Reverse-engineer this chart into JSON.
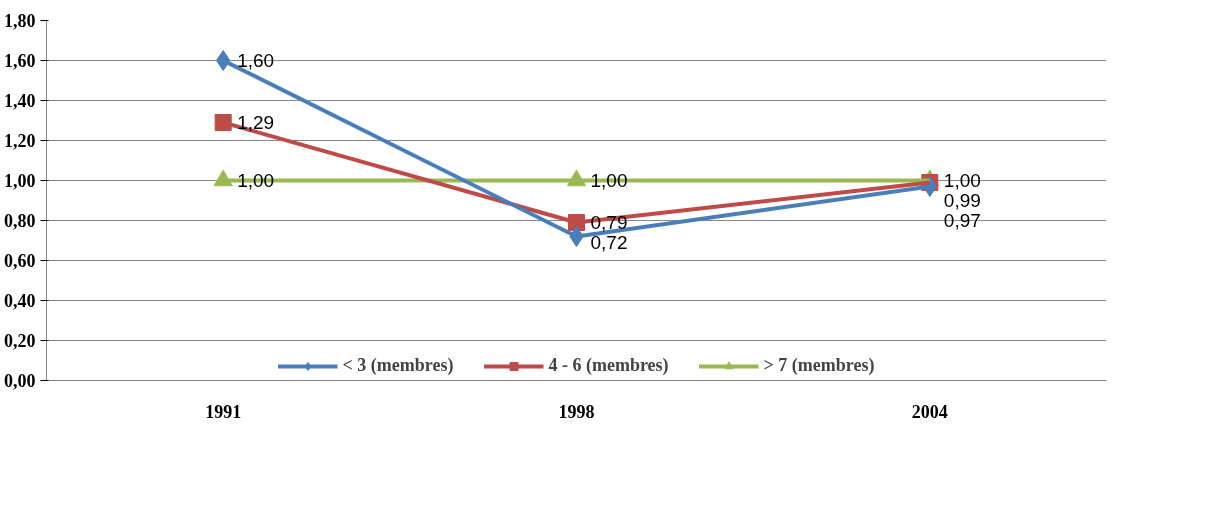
{
  "chart_data": {
    "type": "line",
    "categories": [
      "1991",
      "1998",
      "2004"
    ],
    "series": [
      {
        "name": "< 3 (membres)",
        "color": "#4a7ebb",
        "marker": "diamond",
        "values": [
          1.6,
          0.72,
          0.97
        ],
        "value_labels": [
          "1,60",
          "0,72",
          "0,97"
        ]
      },
      {
        "name": "4 - 6 (membres)",
        "color": "#be4b48",
        "marker": "square",
        "values": [
          1.29,
          0.79,
          0.99
        ],
        "value_labels": [
          "1,29",
          "0,79",
          "0,99"
        ]
      },
      {
        "name": "> 7 (membres)",
        "color": "#98b954",
        "marker": "triangle",
        "values": [
          1.0,
          1.0,
          1.0
        ],
        "value_labels": [
          "1,00",
          "1,00",
          "1,00"
        ]
      }
    ],
    "ylim": [
      0,
      1.8
    ],
    "yticks": [
      {
        "value": 0,
        "label": "0,00"
      },
      {
        "value": 0.2,
        "label": "0,20"
      },
      {
        "value": 0.4,
        "label": "0,40"
      },
      {
        "value": 0.6,
        "label": "0,60"
      },
      {
        "value": 0.8,
        "label": "0,80"
      },
      {
        "value": 1.0,
        "label": "1,00"
      },
      {
        "value": 1.2,
        "label": "1,20"
      },
      {
        "value": 1.4,
        "label": "1,40"
      },
      {
        "value": 1.6,
        "label": "1,60"
      },
      {
        "value": 1.8,
        "label": "1,80"
      }
    ],
    "grid": "y",
    "legend": "bottom"
  }
}
